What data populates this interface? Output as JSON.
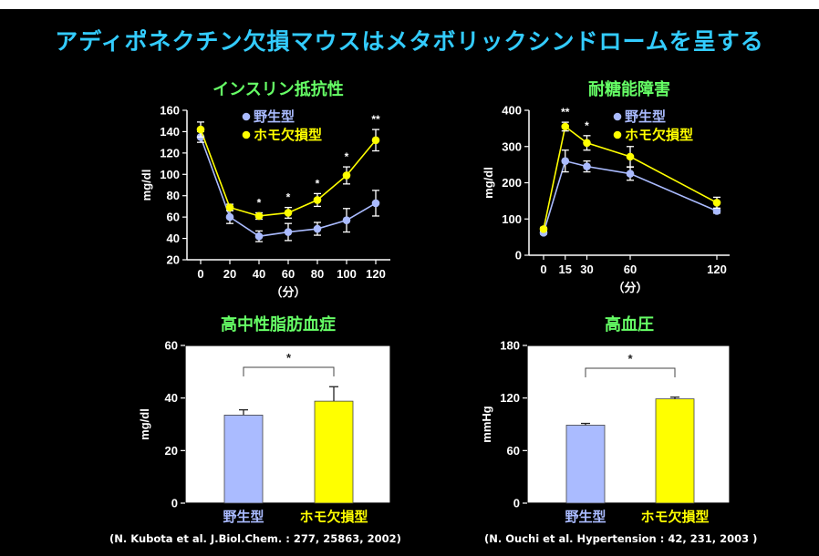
{
  "title": "アディポネクチン欠損マウスはメタボリックシンドロームを呈する",
  "colors": {
    "background": "#000000",
    "title": "#33ccff",
    "panel_title": "#66ff66",
    "wildtype": "#aabbff",
    "knockout": "#ffff00",
    "text": "#ffffff"
  },
  "citations": {
    "left": "(N. Kubota et al. J.Biol.Chem. : 277, 25863, 2002)",
    "right": "(N. Ouchi et al. Hypertension : 42, 231, 2003 )"
  },
  "chart_data": [
    {
      "type": "line",
      "title": "インスリン抵抗性",
      "xlabel": "（分）",
      "ylabel": "mg/dl",
      "x": [
        0,
        20,
        40,
        60,
        80,
        100,
        120
      ],
      "xticks": [
        0,
        20,
        40,
        60,
        80,
        100,
        120
      ],
      "ylim": [
        20,
        160
      ],
      "yticks": [
        20,
        40,
        60,
        80,
        100,
        120,
        140,
        160
      ],
      "legend_position": "top-right",
      "series": [
        {
          "name": "野生型",
          "color": "#aabbff",
          "values": [
            135,
            60,
            42,
            46,
            49,
            57,
            73
          ],
          "errors": [
            5,
            6,
            5,
            8,
            6,
            11,
            12
          ]
        },
        {
          "name": "ホモ欠損型",
          "color": "#ffff00",
          "values": [
            142,
            69,
            61,
            64,
            76,
            99,
            132
          ],
          "errors": [
            7,
            3,
            3,
            5,
            6,
            8,
            10
          ]
        }
      ],
      "annotations": [
        {
          "x": 40,
          "label": "*"
        },
        {
          "x": 60,
          "label": "*"
        },
        {
          "x": 80,
          "label": "*"
        },
        {
          "x": 100,
          "label": "*"
        },
        {
          "x": 120,
          "label": "**"
        }
      ]
    },
    {
      "type": "line",
      "title": "耐糖能障害",
      "xlabel": "（分）",
      "ylabel": "mg/dl",
      "x": [
        0,
        15,
        30,
        60,
        120
      ],
      "xticks": [
        0,
        15,
        30,
        60,
        120
      ],
      "ylim": [
        0,
        400
      ],
      "yticks": [
        0,
        100,
        200,
        300,
        400
      ],
      "legend_position": "top-right",
      "series": [
        {
          "name": "野生型",
          "color": "#aabbff",
          "values": [
            62,
            260,
            245,
            225,
            122
          ],
          "errors": [
            4,
            30,
            15,
            18,
            6
          ]
        },
        {
          "name": "ホモ欠損型",
          "color": "#ffff00",
          "values": [
            72,
            355,
            310,
            272,
            145
          ],
          "errors": [
            5,
            12,
            20,
            28,
            15
          ]
        }
      ],
      "annotations": [
        {
          "x": 15,
          "label": "**"
        },
        {
          "x": 30,
          "label": "*"
        }
      ]
    },
    {
      "type": "bar",
      "title": "高中性脂肪血症",
      "ylabel": "mg/dl",
      "categories": [
        "野生型",
        "ホモ欠損型"
      ],
      "values": [
        33.5,
        38.8
      ],
      "errors": [
        2,
        5.5
      ],
      "colors": [
        "#aabbff",
        "#ffff00"
      ],
      "ylim": [
        0,
        60
      ],
      "yticks": [
        0,
        20,
        40,
        60
      ],
      "significance": "*"
    },
    {
      "type": "bar",
      "title": "高血圧",
      "ylabel": "mmHg",
      "categories": [
        "野生型",
        "ホモ欠損型"
      ],
      "values": [
        89,
        119
      ],
      "errors": [
        2,
        2
      ],
      "colors": [
        "#aabbff",
        "#ffff00"
      ],
      "ylim": [
        0,
        180
      ],
      "yticks": [
        0,
        60,
        120,
        180
      ],
      "significance": "*"
    }
  ]
}
